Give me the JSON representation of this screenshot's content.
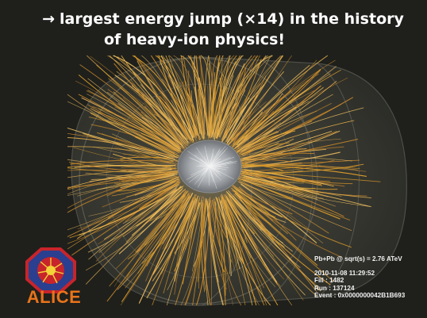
{
  "slide": {
    "headline_arrow": "→",
    "headline_line1": "largest energy jump (×14) in the history",
    "headline_line2": "of heavy-ion physics!"
  },
  "event_info": {
    "collision": "Pb+Pb @ sqrt(s) = 2.76 ATeV",
    "datetime": "2010-11-08 11:29:52",
    "fill": "Fill : 1482",
    "run": "Run : 137124",
    "event": "Event : 0x0000000042B1B693"
  },
  "logo": {
    "wordmark": "ALICE",
    "emblem_icon": "alice-experiment-emblem-icon"
  },
  "colors": {
    "background": "#1f201c",
    "tracks": "#d99a2a",
    "tracks_bright": "#f0c060",
    "detector_core": "#b8bcc0",
    "logo_orange": "#e8741a",
    "logo_red": "#c8242b",
    "logo_blue": "#2a3f8f"
  }
}
